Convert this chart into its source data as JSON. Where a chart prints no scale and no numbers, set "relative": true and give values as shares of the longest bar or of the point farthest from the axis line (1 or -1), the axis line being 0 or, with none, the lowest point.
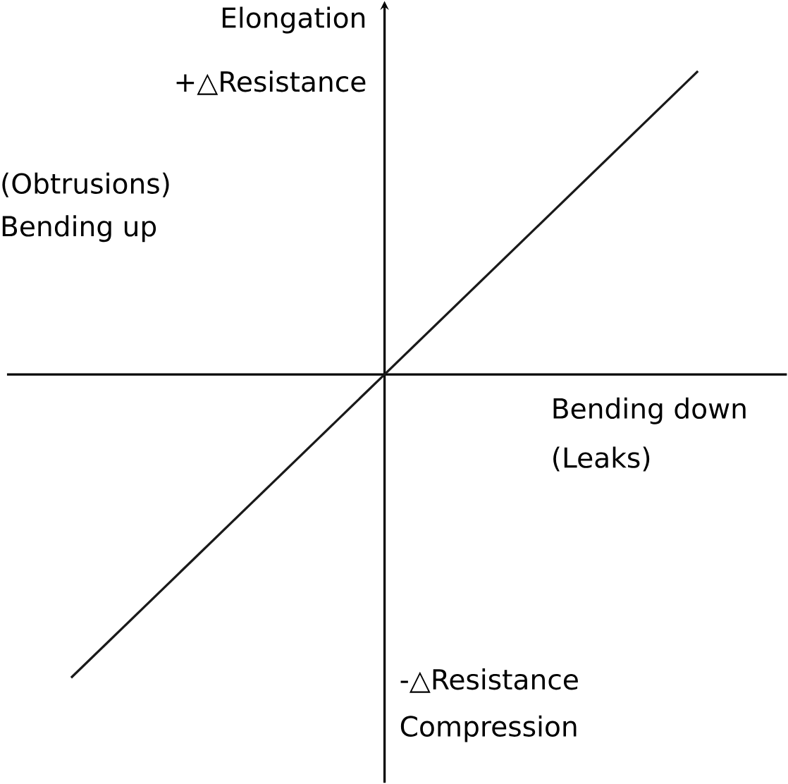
{
  "chart_data": {
    "type": "line",
    "relative": true,
    "categories": [
      null,
      null,
      null
    ],
    "values": [
      -1,
      0,
      1
    ],
    "color": "#1a1a1a",
    "annotations": [
      "Elongation",
      "+△Resistance",
      "(Obtrusions)",
      "Bending up",
      "Bending down",
      "(Leaks)",
      "-△Resistance",
      "Compression"
    ]
  }
}
